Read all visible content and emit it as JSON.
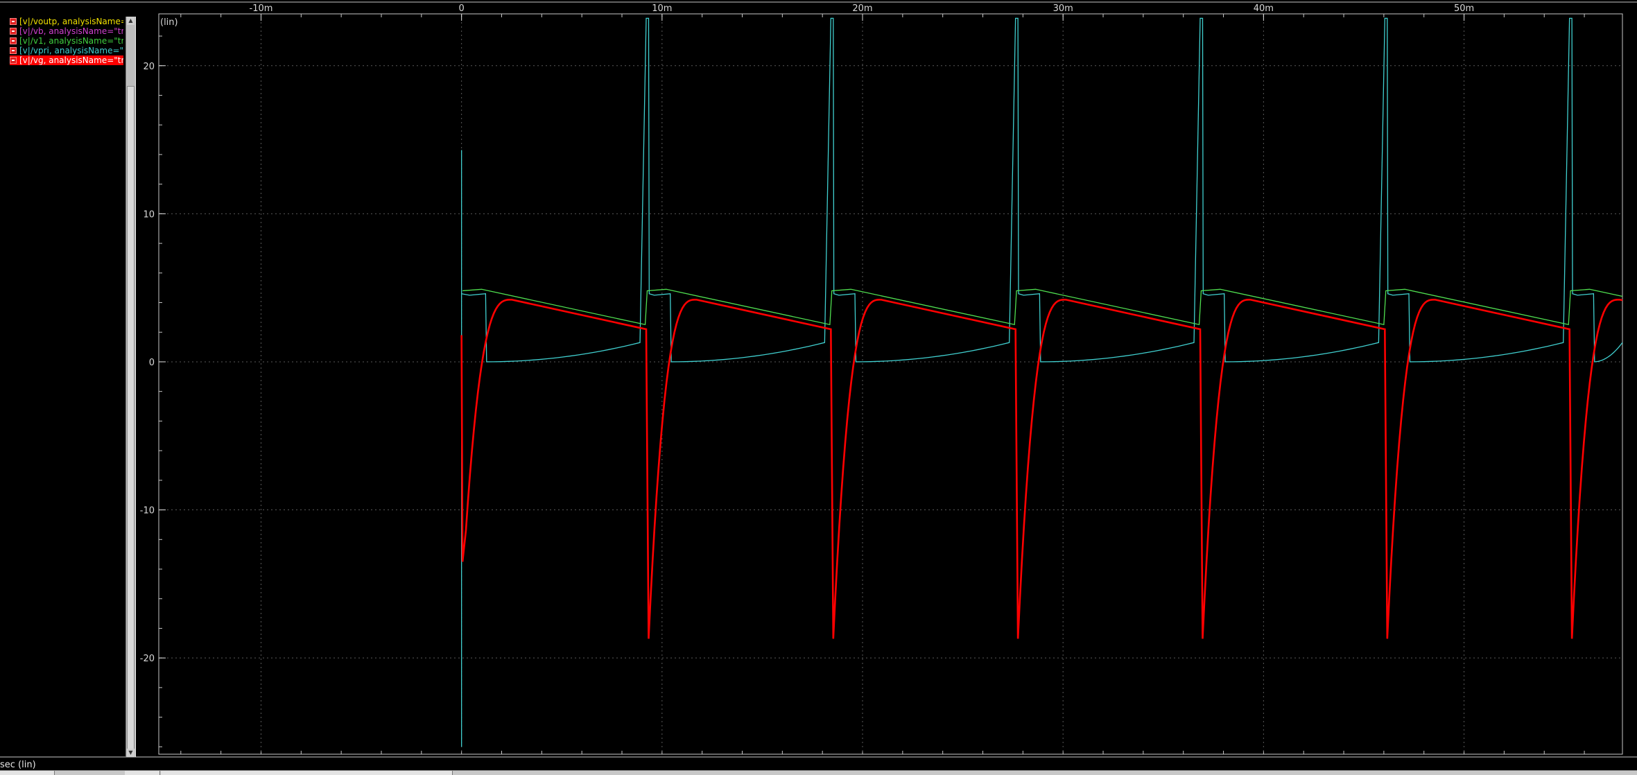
{
  "legend": [
    {
      "label": "[v|/voutp, analysisName=",
      "color": "#f0e000"
    },
    {
      "label": "[v|/vb, analysisName=\"tr",
      "color": "#d040d0"
    },
    {
      "label": "[v|/v1, analysisName=\"tr",
      "color": "#40d040"
    },
    {
      "label": "[v|/vpri, analysisName=\"t",
      "color": "#40d0d0"
    },
    {
      "label": "[v|/vg, analysisName=\"tr",
      "color": "#ffffff"
    }
  ],
  "status_label": "sec (lin)",
  "chart_data": {
    "type": "line",
    "xlabel": "sec (lin)",
    "ylabel": "(lin)",
    "x_unit_label": "sec (lin)",
    "y_unit_label": "(lin)",
    "xlim": [
      -0.0151,
      0.0579
    ],
    "ylim": [
      -26.5,
      23.5
    ],
    "x_ticks": [
      -0.01,
      0,
      0.01,
      0.02,
      0.03,
      0.04,
      0.05
    ],
    "x_tick_labels": [
      "-10m",
      "0",
      "10m",
      "20m",
      "30m",
      "40m",
      "50m"
    ],
    "y_ticks": [
      -20,
      -10,
      0,
      10,
      20
    ],
    "y_tick_labels": [
      "-20",
      "-10",
      "0",
      "10",
      "20"
    ],
    "grid": true,
    "background": "#000000",
    "period": 0.00921,
    "pulse_starts": [
      0,
      0.00921,
      0.01842,
      0.02763,
      0.03684,
      0.04605,
      0.05526
    ],
    "series": [
      {
        "name": "vpri",
        "color": "#40d0d0",
        "spike_peak": 23.2,
        "first_spike_peak": 14.3,
        "plateau_value": 4.6,
        "plateau_end": 0.0012,
        "ramp_start": 0.0,
        "ramp_end": 1.3,
        "ramp_end_offset": 0.0089,
        "pre_pulse_dip": -26.0
      },
      {
        "name": "v1",
        "color": "#50e050",
        "start_value": 4.8,
        "peak_value": 4.9,
        "end_value": 2.5
      },
      {
        "name": "vg",
        "color": "#ff0000",
        "first_min": -13.5,
        "min_value": -18.7,
        "peak_value": 4.2,
        "peak_offset": 0.0025,
        "end_value": 2.2
      }
    ]
  }
}
